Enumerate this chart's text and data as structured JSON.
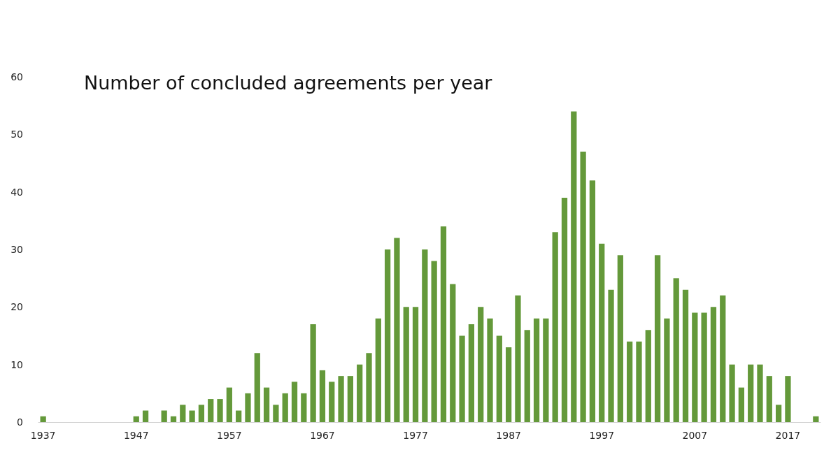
{
  "chart_data": {
    "type": "bar",
    "title": "Number of concluded agreements per year",
    "categories": [
      "1937",
      null,
      null,
      null,
      null,
      null,
      null,
      null,
      null,
      null,
      "1947",
      null,
      null,
      null,
      null,
      null,
      null,
      null,
      null,
      null,
      "1957",
      null,
      null,
      null,
      null,
      null,
      null,
      null,
      null,
      null,
      "1967",
      null,
      null,
      null,
      null,
      null,
      null,
      null,
      null,
      null,
      "1977",
      null,
      null,
      null,
      null,
      null,
      null,
      null,
      null,
      null,
      "1987",
      null,
      null,
      null,
      null,
      null,
      null,
      null,
      null,
      null,
      "1997",
      null,
      null,
      null,
      null,
      null,
      null,
      null,
      null,
      null,
      "2007",
      null,
      null,
      null,
      null,
      null,
      null,
      null,
      null,
      null,
      "2017",
      null,
      null,
      null
    ],
    "values": [
      1,
      0,
      0,
      0,
      0,
      0,
      0,
      0,
      0,
      0,
      1,
      2,
      0,
      2,
      1,
      3,
      2,
      3,
      4,
      4,
      6,
      2,
      5,
      12,
      6,
      3,
      5,
      7,
      5,
      17,
      9,
      7,
      8,
      8,
      10,
      12,
      18,
      30,
      32,
      20,
      20,
      30,
      28,
      34,
      24,
      15,
      17,
      20,
      18,
      15,
      13,
      22,
      16,
      18,
      18,
      33,
      39,
      54,
      47,
      42,
      31,
      23,
      29,
      14,
      14,
      16,
      29,
      18,
      25,
      23,
      19,
      19,
      20,
      22,
      10,
      6,
      10,
      10,
      8,
      3,
      8,
      0,
      0,
      1
    ],
    "color": "#64993a",
    "ylim": [
      0,
      60
    ],
    "yticks": [
      0,
      10,
      20,
      30,
      40,
      50,
      60
    ],
    "grid": false
  }
}
